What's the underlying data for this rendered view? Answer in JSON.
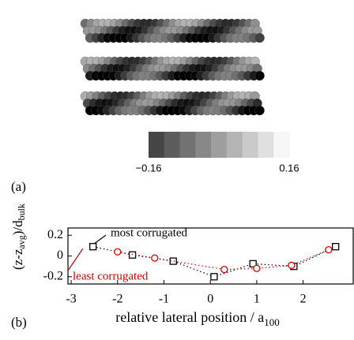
{
  "chart_data": [
    {
      "type": "atoms",
      "panel_label": "(a)",
      "colorbar": {
        "lim": [
          -0.16,
          0.16
        ],
        "ticks": [
          {
            "value": -0.16,
            "label": "−0.16"
          },
          0.16
        ]
      }
    },
    {
      "type": "scatter",
      "panel_label": "(b)",
      "x_label": {
        "main": "relative lateral position / a",
        "sub": "100"
      },
      "y_label": {
        "main": "(z-z",
        "sub1": "avg",
        "mid": ")/d",
        "sub2": "bulk"
      },
      "xlim": [
        -3.07,
        3.08
      ],
      "ylim": [
        -0.27,
        0.27
      ],
      "xticks": [
        -3,
        -2,
        -1,
        0,
        1,
        2
      ],
      "yticks": [
        -0.2,
        0,
        0.2
      ],
      "series": [
        {
          "name": "most corrugated",
          "color": "#000000",
          "marker": "square",
          "x": [
            -2.53,
            -1.68,
            -0.8,
            0.08,
            0.92,
            1.8,
            2.7
          ],
          "values": [
            0.09,
            0.01,
            -0.05,
            -0.2,
            -0.075,
            -0.1,
            0.09
          ]
        },
        {
          "name": "least corrugated",
          "color": "#cc0000",
          "marker": "circle",
          "x": [
            -2.0,
            -1.2,
            0.3,
            1.0,
            1.75,
            2.55
          ],
          "values": [
            0.04,
            -0.02,
            -0.13,
            -0.12,
            -0.09,
            0.06
          ]
        }
      ]
    }
  ]
}
